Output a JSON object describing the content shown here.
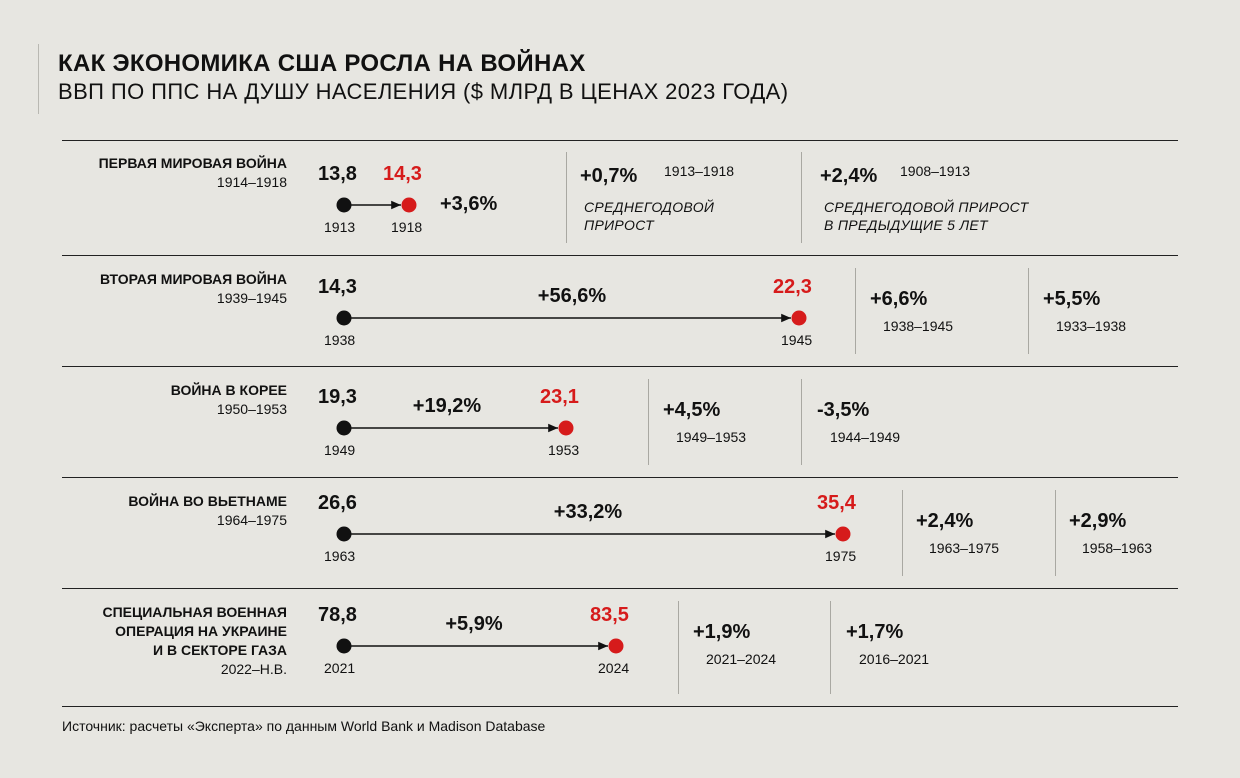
{
  "header": {
    "title": "КАК ЭКОНОМИКА США РОСЛА НА ВОЙНАХ",
    "subtitle": "ВВП ПО ППС НА ДУШУ НАСЕЛЕНИЯ ($ МЛРД В ЦЕНАХ 2023 ГОДА)"
  },
  "footer": {
    "source": "Источник: расчеты «Эксперта» по данным World Bank и Madison Database"
  },
  "colors": {
    "background": "#e7e6e1",
    "start_dot": "#111111",
    "end_dot": "#d61b1b"
  },
  "chart_data": {
    "type": "table",
    "rows": [
      {
        "war": "ПЕРВАЯ МИРОВАЯ ВОЙНА",
        "period": "1914–1918",
        "start": {
          "value_label": "13,8",
          "value": 13.8,
          "year": "1913"
        },
        "end": {
          "value_label": "14,3",
          "value": 14.3,
          "year": "1918"
        },
        "change": "+3,6%",
        "stats": [
          {
            "value": "+0,7%",
            "period": "1913–1918",
            "note": "СРЕДНЕГОДОВОЙ\nПРИРОСТ"
          },
          {
            "value": "+2,4%",
            "period": "1908–1913",
            "note": "СРЕДНЕГОДОВОЙ ПРИРОСТ\nВ ПРЕДЫДУЩИЕ 5 ЛЕТ"
          }
        ]
      },
      {
        "war": "ВТОРАЯ МИРОВАЯ ВОЙНА",
        "period": "1939–1945",
        "start": {
          "value_label": "14,3",
          "value": 14.3,
          "year": "1938"
        },
        "end": {
          "value_label": "22,3",
          "value": 22.3,
          "year": "1945"
        },
        "change": "+56,6%",
        "stats": [
          {
            "value": "+6,6%",
            "period": "1938–1945"
          },
          {
            "value": "+5,5%",
            "period": "1933–1938"
          }
        ]
      },
      {
        "war": "ВОЙНА В КОРЕЕ",
        "period": "1950–1953",
        "start": {
          "value_label": "19,3",
          "value": 19.3,
          "year": "1949"
        },
        "end": {
          "value_label": "23,1",
          "value": 23.1,
          "year": "1953"
        },
        "change": "+19,2%",
        "stats": [
          {
            "value": "+4,5%",
            "period": "1949–1953"
          },
          {
            "value": "-3,5%",
            "period": "1944–1949"
          }
        ]
      },
      {
        "war": "ВОЙНА ВО ВЬЕТНАМЕ",
        "period": "1964–1975",
        "start": {
          "value_label": "26,6",
          "value": 26.6,
          "year": "1963"
        },
        "end": {
          "value_label": "35,4",
          "value": 35.4,
          "year": "1975"
        },
        "change": "+33,2%",
        "stats": [
          {
            "value": "+2,4%",
            "period": "1963–1975"
          },
          {
            "value": "+2,9%",
            "period": "1958–1963"
          }
        ]
      },
      {
        "war": "СПЕЦИАЛЬНАЯ ВОЕННАЯ\nОПЕРАЦИЯ НА УКРАИНЕ\nИ В СЕКТОРЕ ГАЗА",
        "period": "2022–Н.В.",
        "start": {
          "value_label": "78,8",
          "value": 78.8,
          "year": "2021"
        },
        "end": {
          "value_label": "83,5",
          "value": 83.5,
          "year": "2024"
        },
        "change": "+5,9%",
        "stats": [
          {
            "value": "+1,9%",
            "period": "2021–2024"
          },
          {
            "value": "+1,7%",
            "period": "2016–2021"
          }
        ]
      }
    ]
  }
}
